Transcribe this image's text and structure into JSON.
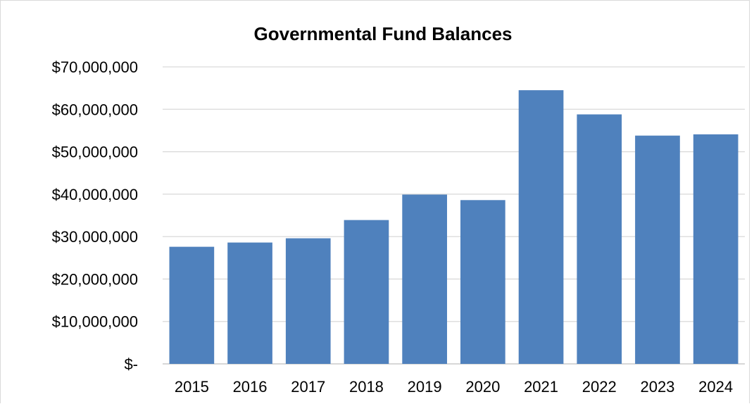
{
  "chart_data": {
    "type": "bar",
    "title": "Governmental Fund Balances",
    "xlabel": "",
    "ylabel": "",
    "categories": [
      "2015",
      "2016",
      "2017",
      "2018",
      "2019",
      "2020",
      "2021",
      "2022",
      "2023",
      "2024"
    ],
    "values": [
      27600000,
      28600000,
      29600000,
      33900000,
      39900000,
      38600000,
      64500000,
      58800000,
      53800000,
      54100000
    ],
    "ylim": [
      0,
      70000000
    ],
    "yticks": [
      0,
      10000000,
      20000000,
      30000000,
      40000000,
      50000000,
      60000000,
      70000000
    ],
    "ytick_labels": [
      "$-",
      "$10,000,000",
      "$20,000,000",
      "$30,000,000",
      "$40,000,000",
      "$50,000,000",
      "$60,000,000",
      "$70,000,000"
    ],
    "grid": true,
    "legend": "none",
    "bar_color": "#4f81bd"
  }
}
